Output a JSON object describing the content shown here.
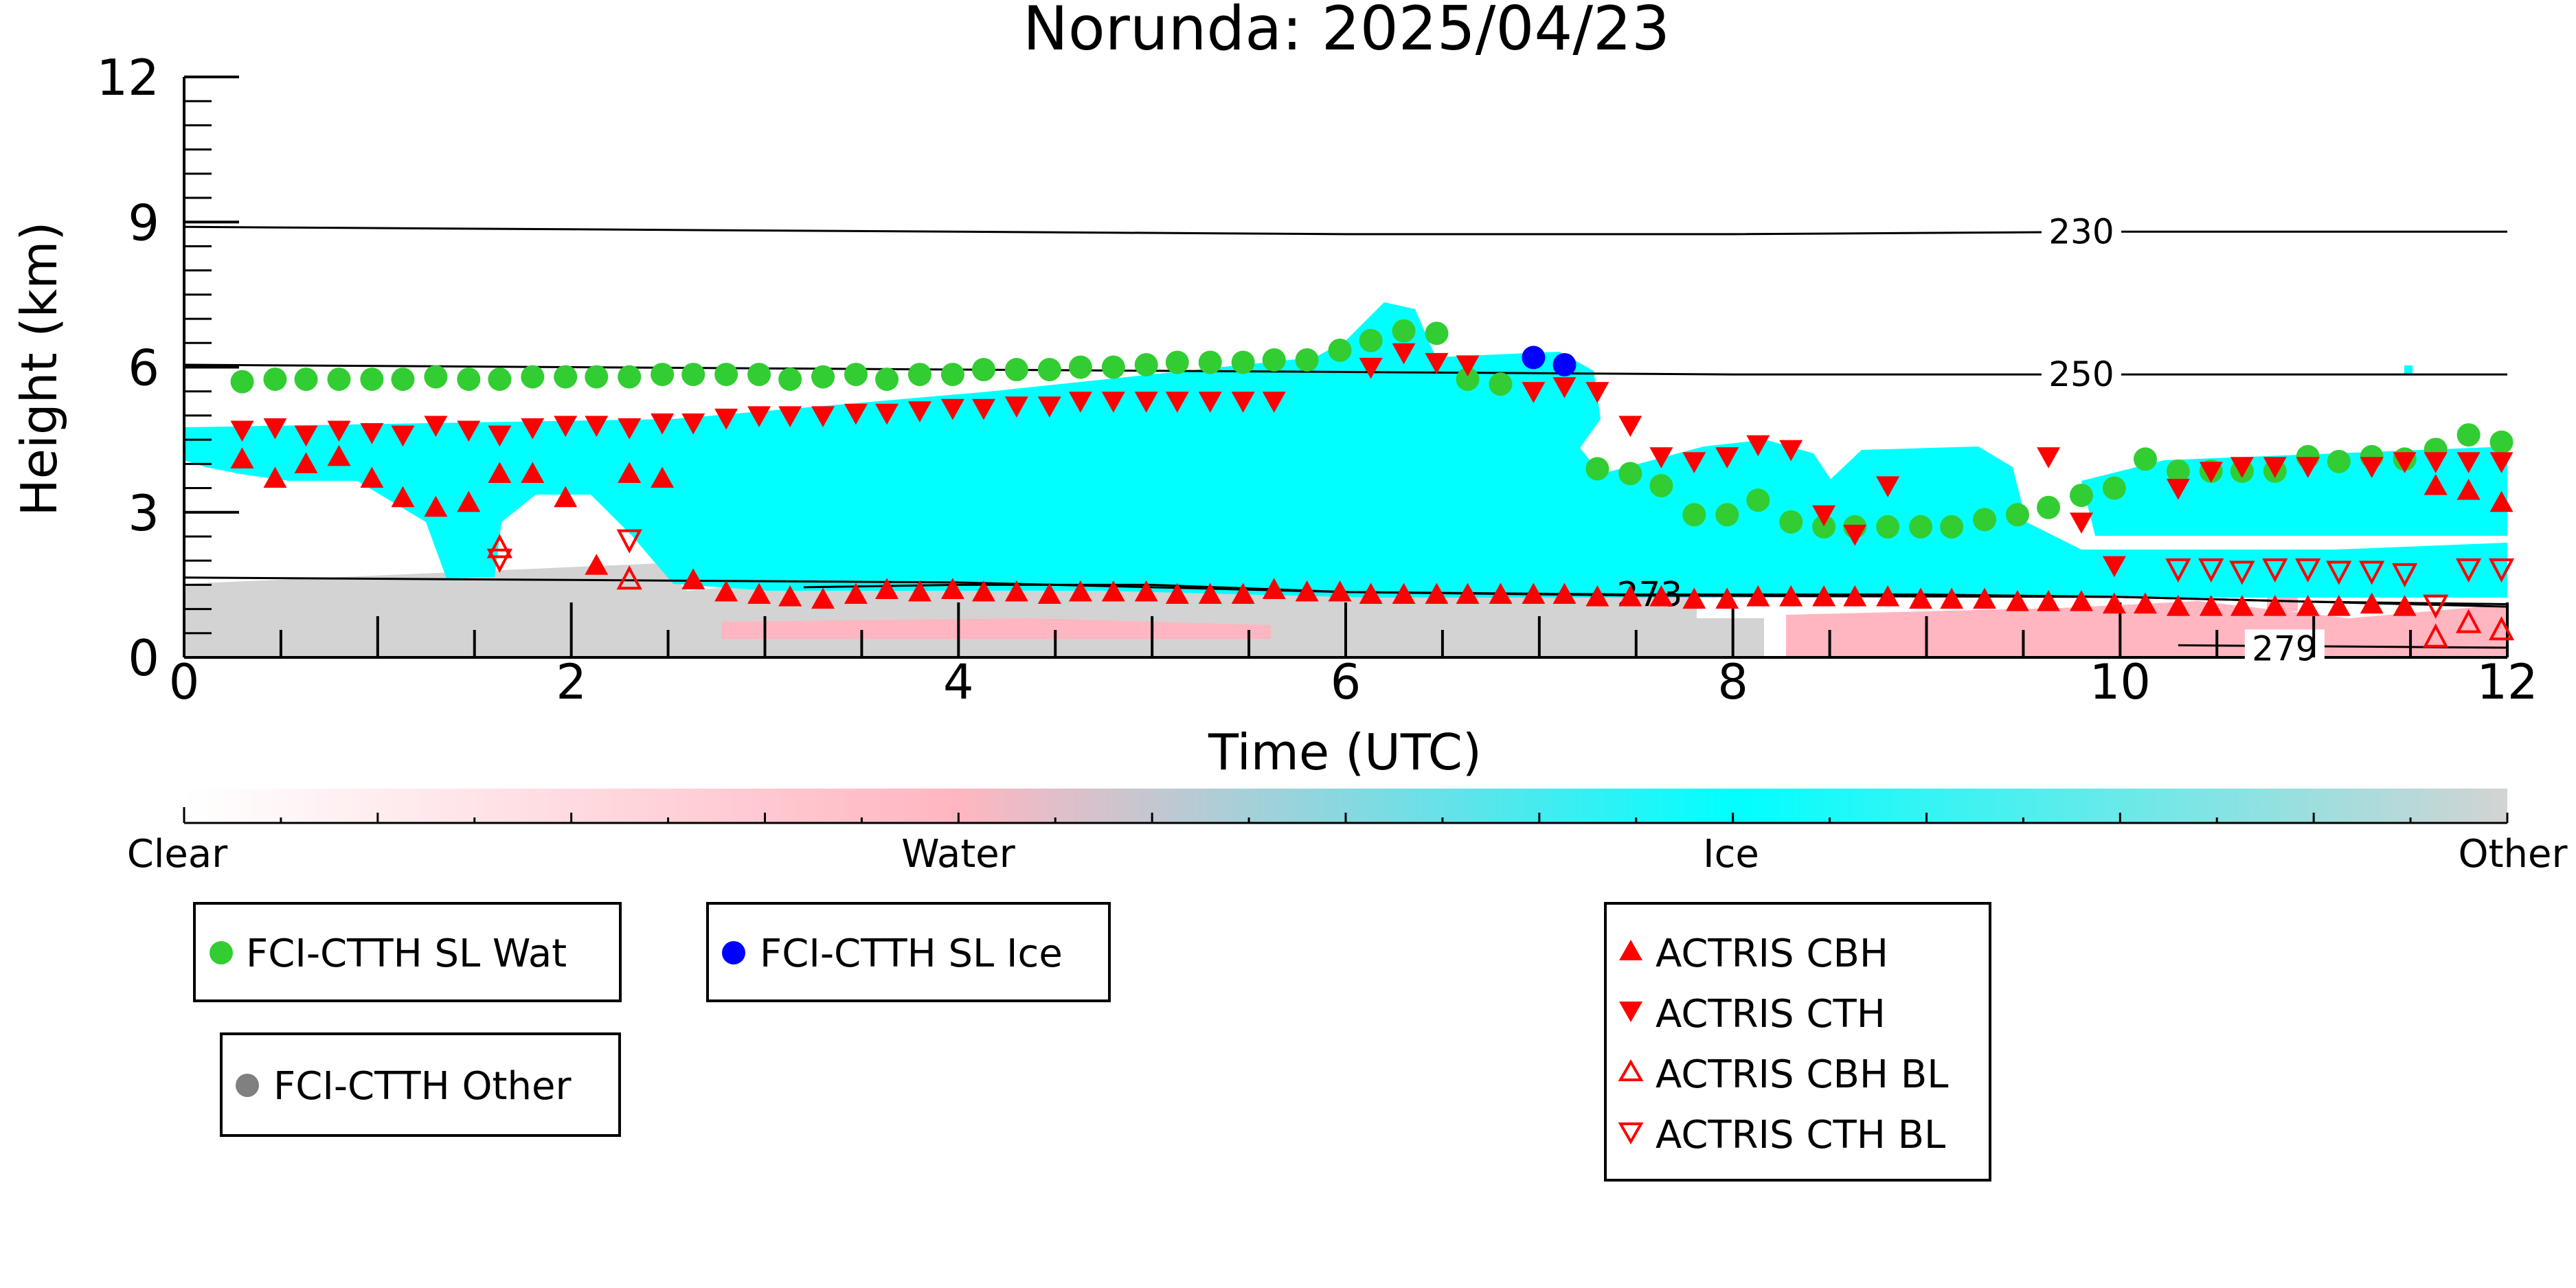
{
  "chart_data": {
    "type": "scatter",
    "title": "Norunda: 2025/04/23",
    "xlabel": "Time (UTC)",
    "ylabel": "Height (km)",
    "xlim": [
      0,
      12
    ],
    "ylim": [
      0,
      12
    ],
    "x_ticks": [
      "0",
      "2",
      "4",
      "6",
      "8",
      "10",
      "12"
    ],
    "y_ticks": [
      "0",
      "3",
      "6",
      "9",
      "12"
    ],
    "colors": {
      "clear": "#ffffff",
      "water": "#ffb6c1",
      "ice": "#00ffff",
      "other": "#d3d3d3",
      "wat_marker": "#32cd32",
      "ice_marker": "#0000ff",
      "other_marker": "#808080",
      "actris": "#ff0000"
    },
    "colorbar_labels": [
      "Clear",
      "Water",
      "Ice",
      "Other"
    ],
    "isotherms": [
      {
        "label": "230",
        "points": [
          [
            0,
            8.9
          ],
          [
            2,
            8.85
          ],
          [
            4,
            8.8
          ],
          [
            6,
            8.75
          ],
          [
            8,
            8.75
          ],
          [
            10,
            8.8
          ],
          [
            12,
            8.8
          ]
        ]
      },
      {
        "label": "250",
        "points": [
          [
            0,
            6.05
          ],
          [
            2,
            6.0
          ],
          [
            4,
            5.95
          ],
          [
            6,
            5.9
          ],
          [
            8,
            5.85
          ],
          [
            10,
            5.85
          ],
          [
            12,
            5.85
          ]
        ]
      },
      {
        "label": "273",
        "points": [
          [
            0,
            1.65
          ],
          [
            2,
            1.6
          ],
          [
            4,
            1.55
          ],
          [
            6,
            1.35
          ],
          [
            7.5,
            1.28
          ],
          [
            10,
            1.25
          ],
          [
            12,
            1.05
          ]
        ]
      },
      {
        "label": "",
        "points": [
          [
            3.2,
            1.45
          ],
          [
            4,
            1.5
          ],
          [
            5,
            1.5
          ],
          [
            6,
            1.35
          ],
          [
            7.5,
            1.3
          ],
          [
            9,
            1.3
          ],
          [
            10,
            1.25
          ],
          [
            11,
            1.15
          ],
          [
            12,
            1.1
          ]
        ]
      },
      {
        "label": "279",
        "points": [
          [
            10.3,
            0.25
          ],
          [
            12,
            0.2
          ]
        ]
      }
    ],
    "series": [
      {
        "name": "FCI-CTTH SL Wat",
        "marker": "circle",
        "x": [
          0.3,
          0.47,
          0.63,
          0.8,
          0.97,
          1.13,
          1.3,
          1.47,
          1.63,
          1.8,
          1.97,
          2.13,
          2.3,
          2.47,
          2.63,
          2.8,
          2.97,
          3.13,
          3.3,
          3.47,
          3.63,
          3.8,
          3.97,
          4.13,
          4.3,
          4.47,
          4.63,
          4.8,
          4.97,
          5.13,
          5.3,
          5.47,
          5.63,
          5.8,
          5.97,
          6.13,
          6.3,
          6.47,
          6.63,
          6.8,
          7.3,
          7.47,
          7.63,
          7.8,
          7.97,
          8.13,
          8.3,
          8.47,
          8.63,
          8.8,
          8.97,
          9.13,
          9.3,
          9.47,
          9.63,
          9.8,
          9.97,
          10.13,
          10.3,
          10.47,
          10.63,
          10.8,
          10.97,
          11.13,
          11.3,
          11.47,
          11.63,
          11.8,
          11.97
        ],
        "y": [
          5.7,
          5.75,
          5.75,
          5.75,
          5.75,
          5.75,
          5.8,
          5.75,
          5.75,
          5.8,
          5.8,
          5.8,
          5.8,
          5.85,
          5.85,
          5.85,
          5.85,
          5.75,
          5.8,
          5.85,
          5.75,
          5.85,
          5.85,
          5.95,
          5.95,
          5.95,
          6.0,
          6.0,
          6.05,
          6.1,
          6.1,
          6.1,
          6.15,
          6.15,
          6.35,
          6.55,
          6.75,
          6.7,
          5.75,
          5.65,
          3.9,
          3.8,
          3.55,
          2.95,
          2.95,
          3.25,
          2.8,
          2.7,
          2.7,
          2.7,
          2.7,
          2.7,
          2.85,
          2.95,
          3.1,
          3.35,
          3.5,
          4.1,
          3.85,
          3.85,
          3.85,
          3.85,
          4.15,
          4.05,
          4.15,
          4.1,
          4.3,
          4.6,
          4.45
        ]
      },
      {
        "name": "FCI-CTTH SL Ice",
        "marker": "circle",
        "x": [
          6.97,
          7.13
        ],
        "y": [
          6.2,
          6.05
        ]
      },
      {
        "name": "FCI-CTTH Other",
        "marker": "circle",
        "x": [],
        "y": []
      },
      {
        "name": "ACTRIS CBH",
        "marker": "triangle-up",
        "x": [
          0.3,
          0.47,
          0.63,
          0.8,
          0.97,
          1.13,
          1.3,
          1.47,
          1.63,
          1.8,
          1.97,
          2.13,
          2.3,
          2.47,
          2.63,
          2.8,
          2.97,
          3.13,
          3.3,
          3.47,
          3.63,
          3.8,
          3.97,
          4.13,
          4.3,
          4.47,
          4.63,
          4.8,
          4.97,
          5.13,
          5.3,
          5.47,
          5.63,
          5.8,
          5.97,
          6.13,
          6.3,
          6.47,
          6.63,
          6.8,
          6.97,
          7.13,
          7.3,
          7.47,
          7.63,
          7.8,
          7.97,
          8.13,
          8.3,
          8.47,
          8.63,
          8.8,
          8.97,
          9.13,
          9.3,
          9.47,
          9.63,
          9.8,
          9.97,
          10.13,
          10.3,
          10.47,
          10.63,
          10.8,
          10.97,
          11.13,
          11.3,
          11.47,
          11.63,
          11.8,
          11.97
        ],
        "y": [
          4.1,
          3.7,
          4.0,
          4.15,
          3.7,
          3.3,
          3.1,
          3.2,
          3.8,
          3.8,
          3.3,
          1.9,
          3.8,
          3.7,
          1.6,
          1.35,
          1.3,
          1.25,
          1.2,
          1.3,
          1.4,
          1.35,
          1.4,
          1.35,
          1.35,
          1.3,
          1.35,
          1.35,
          1.35,
          1.3,
          1.3,
          1.3,
          1.4,
          1.35,
          1.35,
          1.3,
          1.3,
          1.3,
          1.3,
          1.3,
          1.3,
          1.3,
          1.25,
          1.25,
          1.25,
          1.2,
          1.2,
          1.25,
          1.25,
          1.25,
          1.25,
          1.25,
          1.2,
          1.2,
          1.2,
          1.15,
          1.15,
          1.15,
          1.1,
          1.1,
          1.05,
          1.05,
          1.05,
          1.05,
          1.05,
          1.05,
          1.1,
          1.05,
          3.55,
          3.45,
          3.2
        ]
      },
      {
        "name": "ACTRIS CTH",
        "marker": "triangle-down",
        "x": [
          0.3,
          0.47,
          0.63,
          0.8,
          0.97,
          1.13,
          1.3,
          1.47,
          1.63,
          1.8,
          1.97,
          2.13,
          2.3,
          2.47,
          2.63,
          2.8,
          2.97,
          3.13,
          3.3,
          3.47,
          3.63,
          3.8,
          3.97,
          4.13,
          4.3,
          4.47,
          4.63,
          4.8,
          4.97,
          5.13,
          5.3,
          5.47,
          5.63,
          6.13,
          6.3,
          6.47,
          6.63,
          6.97,
          7.13,
          7.3,
          7.47,
          7.63,
          7.8,
          7.97,
          8.13,
          8.3,
          8.47,
          8.63,
          8.8,
          9.63,
          9.8,
          9.97,
          10.3,
          10.47,
          10.63,
          10.8,
          10.97,
          11.3,
          11.47,
          11.63,
          11.8,
          11.97
        ],
        "y": [
          4.7,
          4.75,
          4.6,
          4.7,
          4.65,
          4.6,
          4.8,
          4.7,
          4.6,
          4.75,
          4.8,
          4.8,
          4.75,
          4.85,
          4.85,
          4.95,
          5.0,
          5.0,
          5.0,
          5.05,
          5.05,
          5.1,
          5.15,
          5.15,
          5.2,
          5.2,
          5.3,
          5.3,
          5.3,
          5.3,
          5.3,
          5.3,
          5.3,
          6.0,
          6.3,
          6.1,
          6.05,
          5.5,
          5.6,
          5.5,
          4.8,
          4.15,
          4.05,
          4.15,
          4.4,
          4.3,
          2.95,
          2.55,
          3.55,
          4.15,
          2.8,
          1.9,
          3.5,
          3.85,
          3.95,
          3.95,
          3.95,
          3.95,
          4.05,
          4.05,
          4.05,
          4.05
        ]
      },
      {
        "name": "ACTRIS CBH BL",
        "marker": "triangle-up-open",
        "x": [
          1.63,
          2.3,
          11.63,
          11.8,
          11.97
        ],
        "y": [
          2.25,
          1.6,
          0.4,
          0.7,
          0.55
        ]
      },
      {
        "name": "ACTRIS CTH BL",
        "marker": "triangle-down-open",
        "x": [
          1.63,
          2.3,
          10.3,
          10.47,
          10.63,
          10.8,
          10.97,
          11.13,
          11.3,
          11.47,
          11.63,
          11.8,
          11.97
        ],
        "y": [
          2.05,
          2.45,
          1.85,
          1.85,
          1.8,
          1.85,
          1.85,
          1.8,
          1.8,
          1.75,
          1.1,
          1.85,
          1.85
        ]
      }
    ],
    "legend": {
      "entries": [
        {
          "name": "FCI-CTTH SL Wat",
          "marker": "circle",
          "color": "#32cd32"
        },
        {
          "name": "FCI-CTTH SL Ice",
          "marker": "circle",
          "color": "#0000ff"
        },
        {
          "name": "FCI-CTTH Other",
          "marker": "circle",
          "color": "#808080"
        },
        {
          "name": "ACTRIS CBH",
          "marker": "triangle-up",
          "color": "#ff0000"
        },
        {
          "name": "ACTRIS CTH",
          "marker": "triangle-down",
          "color": "#ff0000"
        },
        {
          "name": "ACTRIS CBH BL",
          "marker": "triangle-up-open",
          "color": "#ff0000"
        },
        {
          "name": "ACTRIS CTH BL",
          "marker": "triangle-down-open",
          "color": "#ff0000"
        }
      ]
    }
  }
}
